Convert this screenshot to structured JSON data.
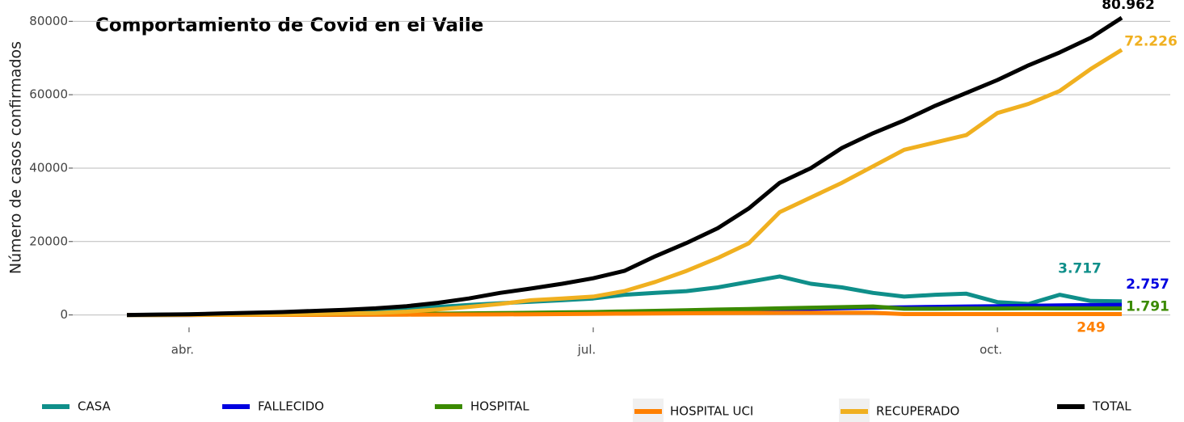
{
  "chart_data": {
    "type": "line",
    "title": "Comportamiento de Covid en el Valle",
    "y_label": "Número de casos confirmados",
    "categories": [
      null,
      null,
      "abr.",
      null,
      null,
      null,
      null,
      null,
      null,
      null,
      null,
      null,
      null,
      null,
      null,
      "jul.",
      null,
      null,
      null,
      null,
      null,
      null,
      null,
      null,
      null,
      null,
      null,
      null,
      "oct.",
      null,
      null,
      null,
      null
    ],
    "ylim": [
      -4000,
      82000
    ],
    "yticks": [
      0,
      20000,
      40000,
      60000,
      80000
    ],
    "grid": true,
    "legend": "bottom",
    "series": [
      {
        "name": "CASA",
        "color": "#0f8f8a",
        "values": [
          0,
          50,
          150,
          300,
          450,
          600,
          800,
          1000,
          1200,
          1700,
          2200,
          2700,
          3200,
          3600,
          4000,
          4500,
          5500,
          6000,
          6500,
          7500,
          9000,
          10500,
          8500,
          7500,
          6000,
          5000,
          5500,
          5800,
          3500,
          3000,
          5500,
          3800,
          3717
        ],
        "value_labels": [
          null,
          null,
          null,
          null,
          null,
          null,
          null,
          null,
          null,
          null,
          null,
          null,
          null,
          null,
          null,
          null,
          null,
          null,
          null,
          null,
          null,
          null,
          null,
          null,
          null,
          null,
          null,
          null,
          null,
          null,
          null,
          null,
          "3.717"
        ]
      },
      {
        "name": "FALLECIDO",
        "color": "#0000e0",
        "values": [
          0,
          2,
          5,
          10,
          20,
          30,
          45,
          70,
          100,
          140,
          180,
          240,
          300,
          400,
          500,
          600,
          720,
          850,
          1000,
          1170,
          1330,
          1500,
          1670,
          1830,
          2000,
          2100,
          2200,
          2300,
          2400,
          2500,
          2600,
          2680,
          2757
        ],
        "value_labels": [
          null,
          null,
          null,
          null,
          null,
          null,
          null,
          null,
          null,
          null,
          null,
          null,
          null,
          null,
          null,
          null,
          null,
          null,
          null,
          null,
          null,
          null,
          null,
          null,
          null,
          null,
          null,
          null,
          null,
          null,
          null,
          null,
          "2.757"
        ]
      },
      {
        "name": "HOSPITAL",
        "color": "#3a8a00",
        "values": [
          0,
          5,
          15,
          30,
          50,
          80,
          110,
          150,
          200,
          280,
          350,
          430,
          500,
          600,
          700,
          800,
          970,
          1130,
          1300,
          1470,
          1630,
          1800,
          1970,
          2130,
          2300,
          1700,
          1700,
          1750,
          1750,
          1800,
          1780,
          1790,
          1791
        ],
        "value_labels": [
          null,
          null,
          null,
          null,
          null,
          null,
          null,
          null,
          null,
          null,
          null,
          null,
          null,
          null,
          null,
          null,
          null,
          null,
          null,
          null,
          null,
          null,
          null,
          null,
          null,
          null,
          null,
          null,
          null,
          null,
          null,
          null,
          "1.791"
        ]
      },
      {
        "name": "HOSPITAL UCI",
        "color": "#ff8000",
        "values": [
          0,
          2,
          5,
          10,
          15,
          20,
          30,
          40,
          60,
          80,
          100,
          130,
          160,
          200,
          250,
          300,
          350,
          400,
          450,
          500,
          550,
          580,
          600,
          600,
          600,
          250,
          240,
          240,
          245,
          245,
          250,
          250,
          249
        ],
        "value_labels": [
          null,
          null,
          null,
          null,
          null,
          null,
          null,
          null,
          null,
          null,
          null,
          null,
          null,
          null,
          null,
          null,
          null,
          null,
          null,
          null,
          null,
          null,
          null,
          null,
          null,
          null,
          null,
          null,
          null,
          null,
          null,
          null,
          "249"
        ]
      },
      {
        "name": "RECUPERADO",
        "color": "#f0b020",
        "values": [
          0,
          0,
          50,
          100,
          150,
          200,
          300,
          400,
          500,
          900,
          1500,
          2200,
          3000,
          4000,
          4500,
          5000,
          6500,
          9000,
          12000,
          15500,
          19500,
          28000,
          32000,
          36000,
          40500,
          45000,
          47000,
          49000,
          55000,
          57500,
          61000,
          67000,
          72226
        ],
        "value_labels": [
          null,
          null,
          null,
          null,
          null,
          null,
          null,
          null,
          null,
          null,
          null,
          null,
          null,
          null,
          null,
          null,
          null,
          null,
          null,
          null,
          null,
          null,
          null,
          null,
          null,
          null,
          null,
          null,
          null,
          null,
          null,
          null,
          "72.226"
        ]
      },
      {
        "name": "TOTAL",
        "color": "#000000",
        "values": [
          0,
          100,
          200,
          400,
          600,
          800,
          1100,
          1400,
          1800,
          2400,
          3300,
          4500,
          6000,
          7200,
          8500,
          10000,
          12000,
          16000,
          19600,
          23600,
          29000,
          36000,
          40000,
          45500,
          49500,
          53000,
          57000,
          60500,
          64000,
          68000,
          71500,
          75500,
          80962
        ],
        "value_labels": [
          null,
          null,
          null,
          null,
          null,
          null,
          null,
          null,
          null,
          null,
          null,
          null,
          null,
          null,
          null,
          null,
          null,
          null,
          null,
          null,
          null,
          null,
          null,
          null,
          null,
          null,
          null,
          null,
          null,
          null,
          null,
          null,
          "80.962"
        ]
      }
    ]
  }
}
